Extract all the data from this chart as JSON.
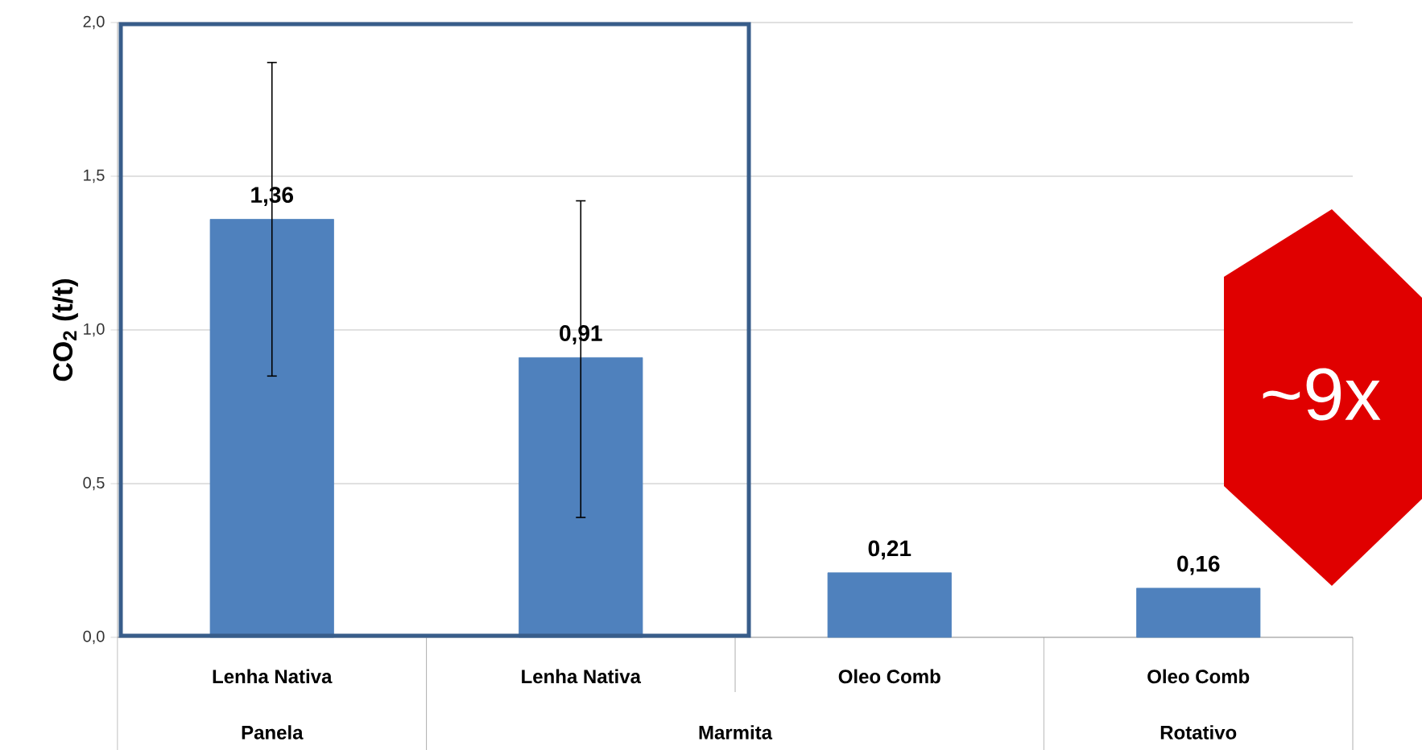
{
  "chart_data": {
    "type": "bar",
    "ylabel": "CO$_{2}$ (t/t)",
    "categories": [
      "Lenha Nativa",
      "Lenha Nativa",
      "Oleo Comb",
      "Oleo Comb"
    ],
    "values": [
      1.36,
      0.91,
      0.21,
      0.16
    ],
    "value_labels": [
      "1,36",
      "0,91",
      "0,21",
      "0,16"
    ],
    "errors": [
      [
        0.85,
        1.87
      ],
      [
        0.39,
        1.42
      ],
      null,
      null
    ],
    "color": "#4f81bd",
    "ylim": [
      0,
      2
    ],
    "yticks": [
      {
        "value": 0,
        "label": "0,0"
      },
      {
        "value": 0.5,
        "label": "0,5"
      },
      {
        "value": 1,
        "label": "1,0"
      },
      {
        "value": 1.5,
        "label": "1,5"
      },
      {
        "value": 2,
        "label": "2,0"
      }
    ],
    "grid": "y",
    "annotations": [
      "Panela",
      "Marmita",
      "Rotativo",
      "~9x"
    ]
  }
}
